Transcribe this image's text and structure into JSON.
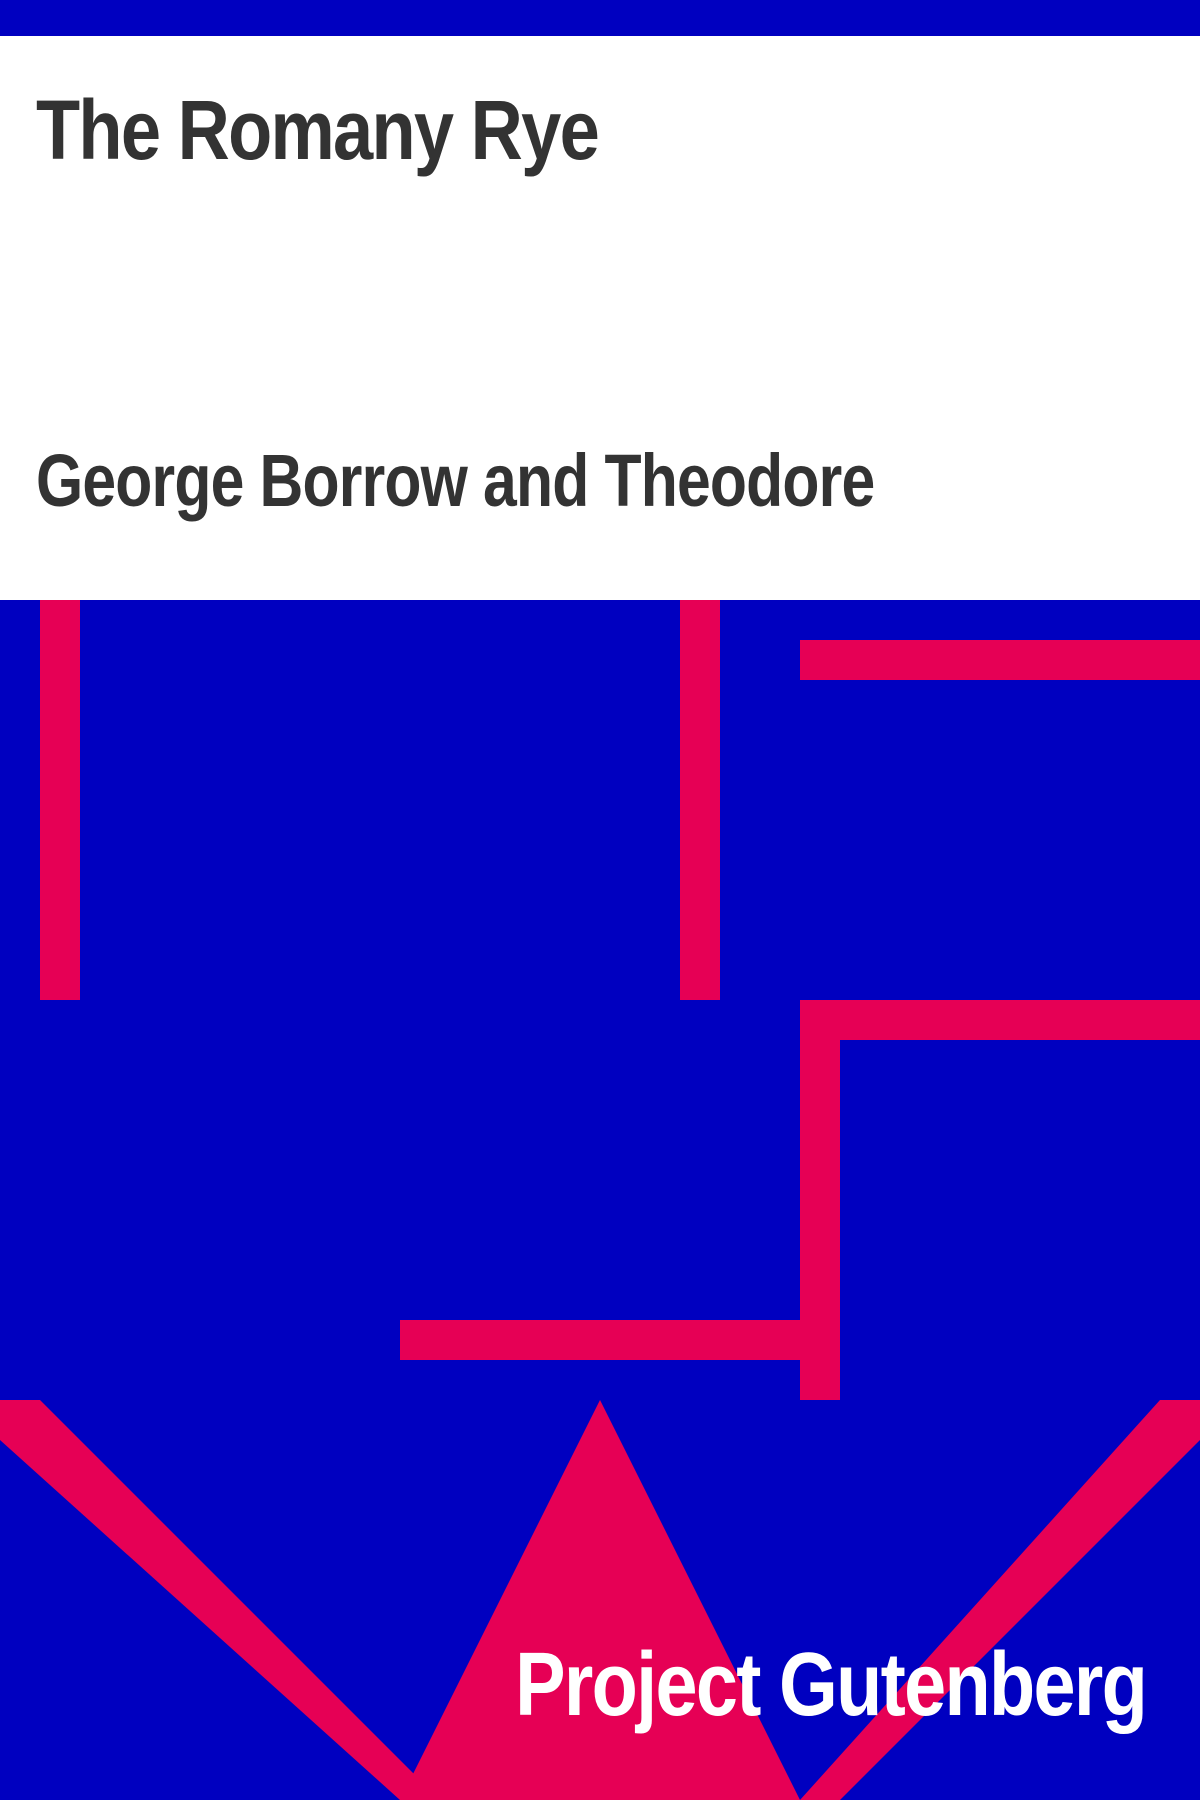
{
  "book": {
    "title": "The Romany Rye",
    "author": "George Borrow and Theodore"
  },
  "publisher": {
    "name": "Project Gutenberg"
  },
  "colors": {
    "background": "#0000C0",
    "accent": "#E60055",
    "panel": "#FFFFFF",
    "text": "#333333",
    "publisher_text": "#FFFFFF"
  }
}
